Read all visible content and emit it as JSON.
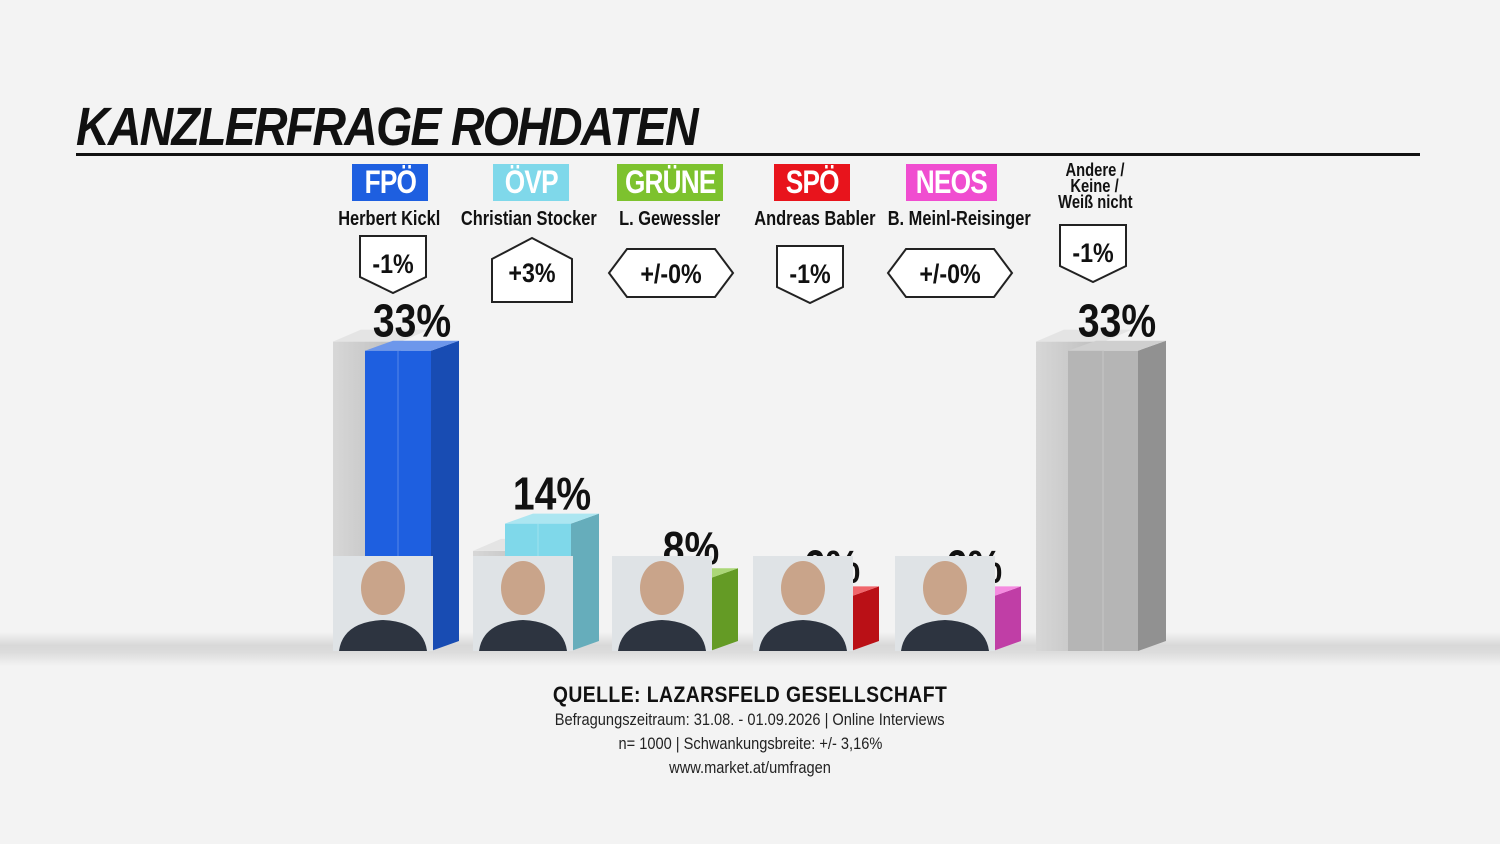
{
  "title": "KANZLERFRAGE ROHDATEN",
  "source": {
    "title": "QUELLE: LAZARSFELD GESELLSCHAFT",
    "line1": "Befragungszeitraum: 31.08. - 01.09.2026 | Online Interviews",
    "line2": "n= 1000 | Schwankungsbreite: +/- 3,16%",
    "line3": "www.market.at/umfragen"
  },
  "colors": {
    "FPÖ": "#1e5fe0",
    "ÖVP": "#7fd8ea",
    "GRÜNE": "#7dc22e",
    "SPÖ": "#e8141c",
    "NEOS": "#f04dd0",
    "others": "#b5b5b5"
  },
  "candidates": [
    {
      "party": "FPÖ",
      "name": "Herbert Kickl",
      "change": "-1%",
      "value_label": "33%"
    },
    {
      "party": "ÖVP",
      "name": "Christian Stocker",
      "change": "+3%",
      "value_label": "14%"
    },
    {
      "party": "GRÜNE",
      "name": "L. Gewessler",
      "change": "+/-0%",
      "value_label": "8%"
    },
    {
      "party": "SPÖ",
      "name": "Andreas Babler",
      "change": "-1%",
      "value_label": "6%"
    },
    {
      "party": "NEOS",
      "name": "B. Meinl-Reisinger",
      "change": "+/-0%",
      "value_label": "6%"
    }
  ],
  "others": {
    "label_line1": "Andere /",
    "label_line2": "Keine /",
    "label_line3": "Weiß nicht",
    "change": "-1%",
    "value_label": "33%"
  },
  "chart_data": {
    "type": "bar",
    "categories": [
      "Herbert Kickl",
      "Christian Stocker",
      "L. Gewessler",
      "Andreas Babler",
      "B. Meinl-Reisinger",
      "Andere / Keine / Weiß nicht"
    ],
    "values": [
      33,
      14,
      8,
      6,
      6,
      33
    ],
    "previous_values": [
      34,
      11,
      8,
      7,
      6,
      34
    ],
    "changes": [
      "-1%",
      "+3%",
      "+/-0%",
      "-1%",
      "+/-0%",
      "-1%"
    ],
    "title": "KANZLERFRAGE ROHDATEN",
    "xlabel": "",
    "ylabel": "",
    "grid": false,
    "legend": "none"
  }
}
